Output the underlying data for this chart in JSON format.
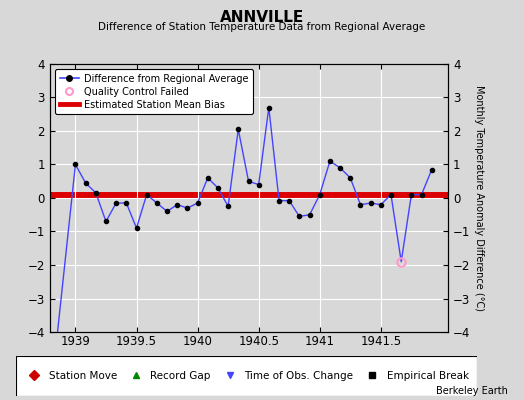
{
  "title": "ANNVILLE",
  "subtitle": "Difference of Station Temperature Data from Regional Average",
  "ylabel_right": "Monthly Temperature Anomaly Difference (°C)",
  "background_color": "#d8d8d8",
  "plot_bg_color": "#d8d8d8",
  "bias_value": 0.1,
  "ylim": [
    -4,
    4
  ],
  "xlim": [
    1938.79,
    1942.05
  ],
  "xticks": [
    1939,
    1939.5,
    1940,
    1940.5,
    1941,
    1941.5
  ],
  "xtick_labels": [
    "1939",
    "1939.5",
    "1940",
    "1940.5",
    "1941",
    "1941.5"
  ],
  "yticks": [
    -4,
    -3,
    -2,
    -1,
    0,
    1,
    2,
    3,
    4
  ],
  "line_color": "#4444ff",
  "bias_color": "#dd0000",
  "watermark": "Berkeley Earth",
  "x_full": [
    1938.83,
    1939.0,
    1939.083,
    1939.167,
    1939.25,
    1939.333,
    1939.417,
    1939.5,
    1939.583,
    1939.667,
    1939.75,
    1939.833,
    1939.917,
    1940.0,
    1940.083,
    1940.167,
    1940.25,
    1940.333,
    1940.417,
    1940.5,
    1940.583,
    1940.667,
    1940.75,
    1940.833,
    1940.917,
    1941.0,
    1941.083,
    1941.167,
    1941.25,
    1941.333,
    1941.417,
    1941.5,
    1941.583,
    1941.667,
    1941.75,
    1941.833,
    1941.917
  ],
  "y_full": [
    -4.8,
    1.0,
    0.45,
    0.15,
    -0.7,
    -0.15,
    -0.15,
    -0.9,
    0.1,
    -0.15,
    -0.4,
    -0.2,
    -0.3,
    -0.15,
    0.6,
    0.3,
    -0.25,
    2.05,
    0.5,
    0.4,
    2.7,
    -0.08,
    -0.08,
    -0.55,
    -0.5,
    0.1,
    1.1,
    0.9,
    0.6,
    -0.2,
    -0.15,
    -0.2,
    0.1,
    -1.9,
    0.1,
    0.1,
    0.85
  ],
  "marker_skip": [
    0,
    33
  ],
  "qc_fail_x": [
    1941.667
  ],
  "qc_fail_y": [
    -1.9
  ]
}
